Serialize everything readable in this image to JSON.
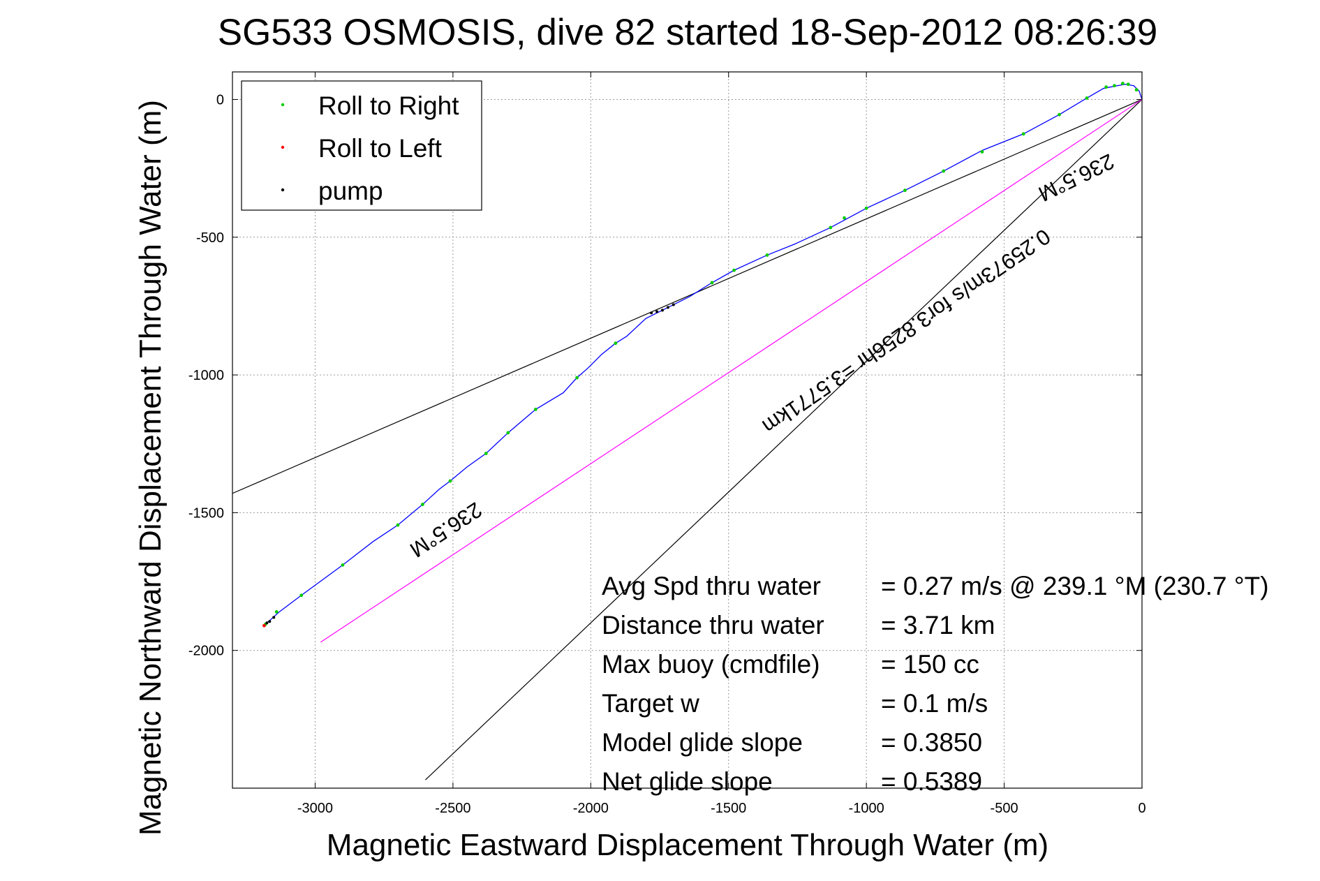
{
  "chart_data": {
    "type": "scatter",
    "title": "SG533 OSMOSIS, dive 82 started 18-Sep-2012 08:26:39",
    "xlabel": "Magnetic Eastward Displacement Through Water (m)",
    "ylabel": "Magnetic Northward Displacement Through Water (m)",
    "xlim": [
      -3300,
      0
    ],
    "ylim": [
      -2500,
      100
    ],
    "xticks": [
      -3000,
      -2500,
      -2000,
      -1500,
      -1000,
      -500,
      0
    ],
    "yticks": [
      0,
      -500,
      -1000,
      -1500,
      -2000
    ],
    "xtick_labels": [
      "-3000",
      "-2500",
      "-2000",
      "-1500",
      "-1000",
      "-500",
      "0"
    ],
    "ytick_labels": [
      "0",
      "-500",
      "-1000",
      "-1500",
      "-2000"
    ],
    "grid": true,
    "legend_position": "top-left",
    "legend": [
      {
        "label": "Roll to Right",
        "color": "#00cc00"
      },
      {
        "label": "Roll to Left",
        "color": "#ff0000"
      },
      {
        "label": "pump",
        "color": "#000000"
      }
    ],
    "track": {
      "color": "#0000ff",
      "points": [
        [
          0,
          0
        ],
        [
          -10,
          30
        ],
        [
          -30,
          50
        ],
        [
          -60,
          55
        ],
        [
          -90,
          50
        ],
        [
          -140,
          40
        ],
        [
          -200,
          5
        ],
        [
          -300,
          -55
        ],
        [
          -430,
          -125
        ],
        [
          -580,
          -185
        ],
        [
          -720,
          -260
        ],
        [
          -860,
          -330
        ],
        [
          -1000,
          -395
        ],
        [
          -1130,
          -465
        ],
        [
          -1260,
          -525
        ],
        [
          -1360,
          -565
        ],
        [
          -1480,
          -620
        ],
        [
          -1560,
          -665
        ],
        [
          -1640,
          -715
        ],
        [
          -1720,
          -755
        ],
        [
          -1800,
          -795
        ],
        [
          -1870,
          -860
        ],
        [
          -1910,
          -885
        ],
        [
          -1960,
          -925
        ],
        [
          -2010,
          -975
        ],
        [
          -2050,
          -1010
        ],
        [
          -2100,
          -1065
        ],
        [
          -2200,
          -1125
        ],
        [
          -2300,
          -1210
        ],
        [
          -2380,
          -1285
        ],
        [
          -2450,
          -1335
        ],
        [
          -2510,
          -1385
        ],
        [
          -2550,
          -1415
        ],
        [
          -2610,
          -1470
        ],
        [
          -2700,
          -1545
        ],
        [
          -2790,
          -1605
        ],
        [
          -2900,
          -1690
        ],
        [
          -3050,
          -1800
        ],
        [
          -3130,
          -1860
        ],
        [
          -3180,
          -1905
        ]
      ]
    },
    "roll_right_points": [
      [
        -20,
        35
      ],
      [
        -50,
        55
      ],
      [
        -70,
        58
      ],
      [
        -100,
        50
      ],
      [
        -130,
        45
      ],
      [
        -200,
        5
      ],
      [
        -300,
        -55
      ],
      [
        -430,
        -125
      ],
      [
        -580,
        -190
      ],
      [
        -720,
        -260
      ],
      [
        -860,
        -330
      ],
      [
        -1000,
        -395
      ],
      [
        -1080,
        -430
      ],
      [
        -1130,
        -465
      ],
      [
        -1360,
        -565
      ],
      [
        -1480,
        -620
      ],
      [
        -1560,
        -665
      ],
      [
        -1910,
        -885
      ],
      [
        -2050,
        -1010
      ],
      [
        -2200,
        -1125
      ],
      [
        -2300,
        -1210
      ],
      [
        -2380,
        -1285
      ],
      [
        -2510,
        -1385
      ],
      [
        -2610,
        -1470
      ],
      [
        -2700,
        -1545
      ],
      [
        -2900,
        -1690
      ],
      [
        -3050,
        -1800
      ],
      [
        -3140,
        -1860
      ],
      [
        -3180,
        -1905
      ]
    ],
    "roll_left_points": [
      [
        -3185,
        -1910
      ]
    ],
    "pump_points": [
      [
        -1700,
        -745
      ],
      [
        -1720,
        -755
      ],
      [
        -1740,
        -765
      ],
      [
        -1760,
        -770
      ],
      [
        -1780,
        -775
      ],
      [
        -3150,
        -1880
      ],
      [
        -3165,
        -1895
      ],
      [
        -3175,
        -1900
      ]
    ],
    "lines": [
      {
        "name": "heading-ray-upper",
        "color": "#000000",
        "points": [
          [
            0,
            0
          ],
          [
            -3300,
            -1430
          ]
        ]
      },
      {
        "name": "heading-ray-lower",
        "color": "#000000",
        "points": [
          [
            0,
            0
          ],
          [
            -2600,
            -2470
          ]
        ]
      },
      {
        "name": "speed-line",
        "color": "#ff00ff",
        "points": [
          [
            0,
            0
          ],
          [
            -2980,
            -1970
          ]
        ]
      }
    ],
    "annotations": [
      {
        "text": "236.5°M",
        "x": -2540,
        "y": -1540,
        "rotation": 146.5
      },
      {
        "text": "236.5°M",
        "x": -250,
        "y": -260,
        "rotation": 154
      },
      {
        "text": "0.25973m/s for3.8256hr =3.5771km",
        "x": -870,
        "y": -820,
        "rotation": 145.5
      }
    ],
    "stats": [
      {
        "label": "Avg Spd thru water",
        "value": "=  0.27 m/s @ 239.1 °M (230.7 °T)"
      },
      {
        "label": "Distance thru water",
        "value": "=  3.71 km"
      },
      {
        "label": "Max buoy (cmdfile)",
        "value": "= 150 cc"
      },
      {
        "label": "Target w",
        "value": "= 0.1 m/s"
      },
      {
        "label": "Model glide slope",
        "value": "= 0.3850"
      },
      {
        "label": "Net glide slope",
        "value": "= 0.5389"
      }
    ]
  }
}
